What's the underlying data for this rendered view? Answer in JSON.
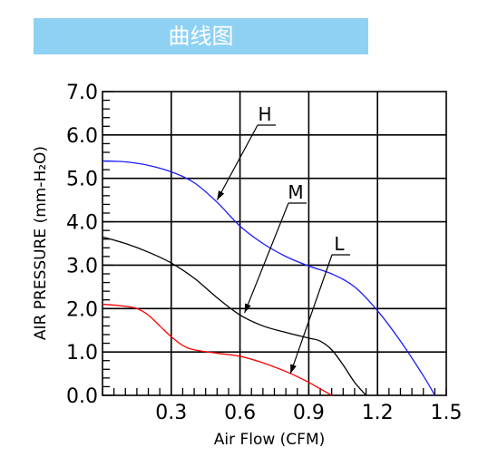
{
  "header": {
    "title": "曲线图"
  },
  "chart_data": {
    "type": "line",
    "title": "",
    "xlabel": "Air Flow (CFM)",
    "ylabel": "AIR PRESSURE (mm-H₂O)",
    "xlim": [
      0,
      1.5
    ],
    "ylim": [
      0,
      7.0
    ],
    "x_ticks": [
      "0.3",
      "0.6",
      "0.9",
      "1.2",
      "1.5"
    ],
    "y_ticks": [
      "0.0",
      "1.0",
      "2.0",
      "3.0",
      "4.0",
      "5.0",
      "6.0",
      "7.0"
    ],
    "grid": true,
    "colors": {
      "H": "#1a1aff",
      "M": "#000000",
      "L": "#ff0000"
    },
    "series": [
      {
        "name": "H",
        "x": [
          0,
          0.1,
          0.2,
          0.3,
          0.4,
          0.5,
          0.6,
          0.7,
          0.8,
          0.9,
          1.0,
          1.1,
          1.2,
          1.3,
          1.4,
          1.45
        ],
        "y": [
          5.4,
          5.38,
          5.3,
          5.15,
          4.9,
          4.45,
          3.9,
          3.5,
          3.2,
          2.98,
          2.8,
          2.5,
          1.95,
          1.25,
          0.45,
          0.0
        ]
      },
      {
        "name": "M",
        "x": [
          0,
          0.1,
          0.2,
          0.3,
          0.4,
          0.5,
          0.6,
          0.7,
          0.8,
          0.9,
          0.95,
          1.0,
          1.05,
          1.1,
          1.15
        ],
        "y": [
          3.65,
          3.5,
          3.3,
          3.05,
          2.7,
          2.25,
          1.85,
          1.6,
          1.45,
          1.32,
          1.25,
          1.05,
          0.7,
          0.3,
          0.0
        ]
      },
      {
        "name": "L",
        "x": [
          0,
          0.05,
          0.1,
          0.15,
          0.2,
          0.25,
          0.3,
          0.35,
          0.4,
          0.5,
          0.6,
          0.7,
          0.8,
          0.85,
          0.9,
          0.95,
          1.0
        ],
        "y": [
          2.1,
          2.08,
          2.05,
          2.0,
          1.85,
          1.6,
          1.35,
          1.15,
          1.05,
          0.97,
          0.9,
          0.75,
          0.55,
          0.43,
          0.3,
          0.15,
          0.0
        ]
      }
    ],
    "annotations": [
      {
        "label": "H",
        "target_x": 0.5,
        "target_y": 4.5
      },
      {
        "label": "M",
        "target_x": 0.62,
        "target_y": 1.9
      },
      {
        "label": "L",
        "target_x": 0.82,
        "target_y": 0.5
      }
    ]
  }
}
